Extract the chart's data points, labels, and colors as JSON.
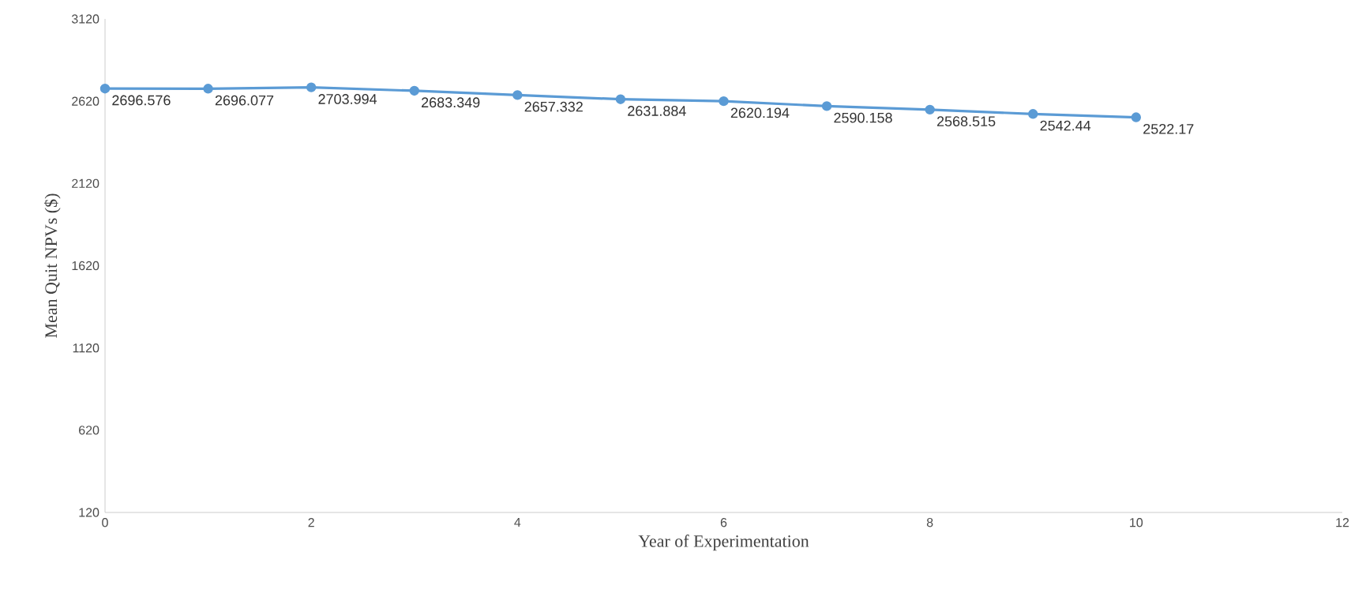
{
  "chart_data": {
    "type": "line",
    "xlabel": "Year of Experimentation",
    "ylabel": "Mean Quit NPVs ($)",
    "x": [
      0,
      1,
      2,
      3,
      4,
      5,
      6,
      7,
      8,
      9,
      10
    ],
    "values": [
      2696.576,
      2696.077,
      2703.994,
      2683.349,
      2657.332,
      2631.884,
      2620.194,
      2590.158,
      2568.515,
      2542.44,
      2522.17
    ],
    "color": "#5b9bd5",
    "marker": "circle",
    "line_style": "solid",
    "data_labels": true,
    "xlim": [
      0,
      12
    ],
    "xticks": [
      0,
      2,
      4,
      6,
      8,
      10,
      12
    ],
    "ylim": [
      120,
      3120
    ],
    "yticks": [
      120,
      620,
      1120,
      1620,
      2120,
      2620,
      3120
    ]
  }
}
